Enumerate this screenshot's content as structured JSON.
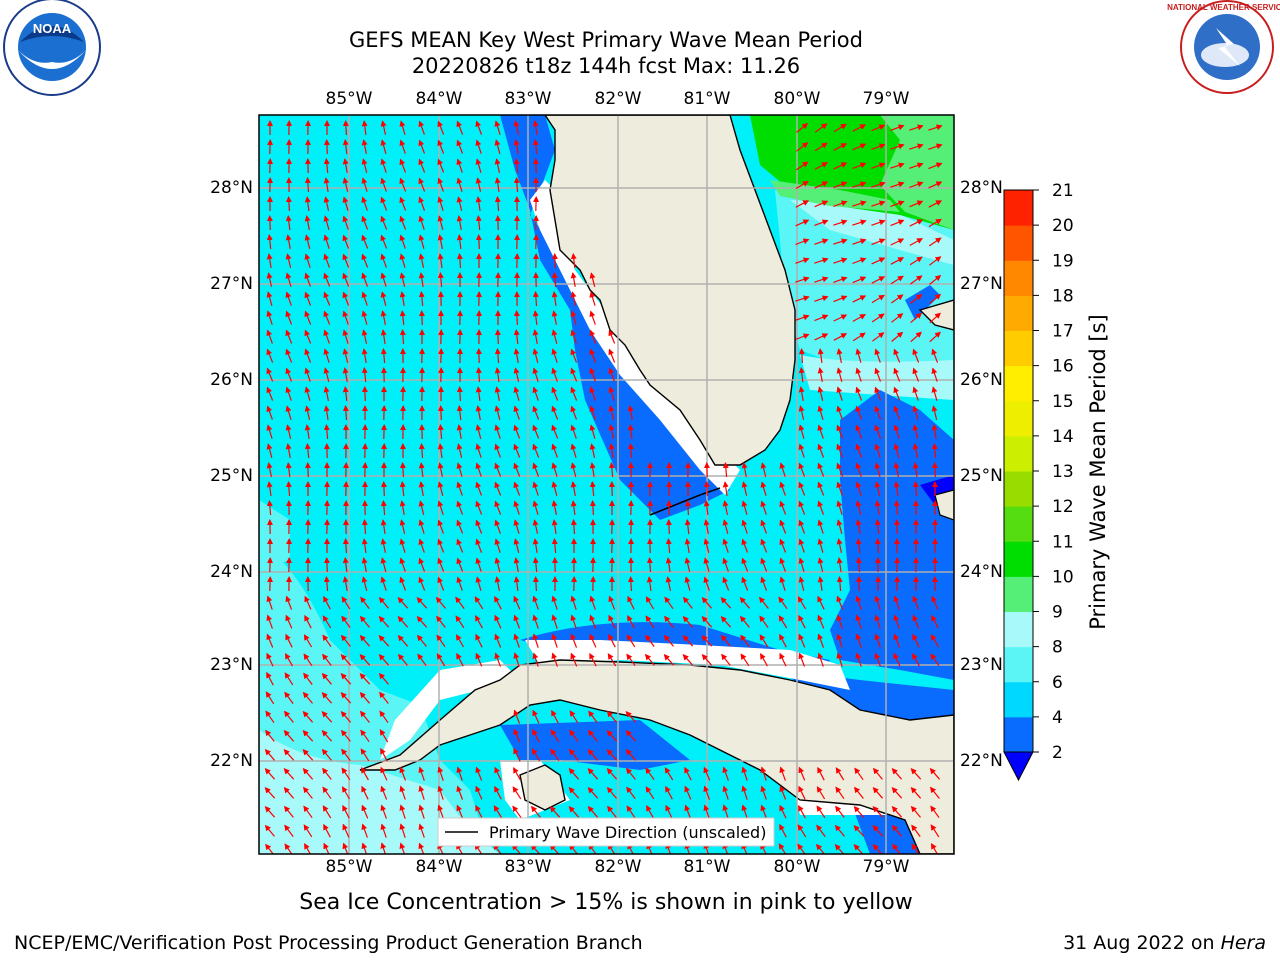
{
  "title": {
    "line1": "GEFS MEAN Key West Primary Wave Mean Period",
    "line2": "20220826 t18z 144h fcst   Max: 11.26"
  },
  "logos": {
    "left": "NOAA",
    "right": "NATIONAL WEATHER SERVICE"
  },
  "map": {
    "lon_labels": [
      "85°W",
      "84°W",
      "83°W",
      "82°W",
      "81°W",
      "80°W",
      "79°W"
    ],
    "lat_labels": [
      "28°N",
      "27°N",
      "26°N",
      "25°N",
      "24°N",
      "23°N",
      "22°N"
    ],
    "legend_label": "Primary Wave Direction (unscaled)",
    "land_color": "#eeecdc",
    "arrow_color": "#ff0000"
  },
  "colorbar": {
    "label": "Primary Wave Mean Period [s]",
    "ticks": [
      "2",
      "4",
      "6",
      "8",
      "9",
      "10",
      "11",
      "12",
      "13",
      "14",
      "15",
      "16",
      "17",
      "18",
      "19",
      "20",
      "21"
    ],
    "colors": [
      "#0a6bff",
      "#00d8ff",
      "#5cf5f5",
      "#a8fafa",
      "#55ee77",
      "#00dd00",
      "#55dd11",
      "#99dd00",
      "#ccee00",
      "#eeee00",
      "#ffee00",
      "#ffcc00",
      "#ffaa00",
      "#ff8800",
      "#ff5500",
      "#ff2200"
    ],
    "under_color": "#0000ff"
  },
  "ice_note": "Sea Ice Concentration > 15% is shown in pink to yellow",
  "footer": {
    "left": "NCEP/EMC/Verification Post Processing Product Generation Branch",
    "right_date": "31 Aug 2022 on ",
    "right_host": "Hera"
  }
}
